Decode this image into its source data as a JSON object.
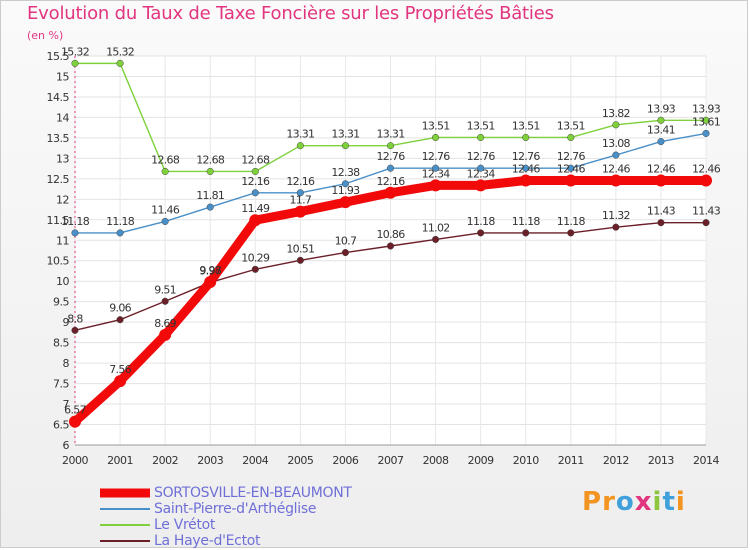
{
  "title": "Evolution du Taux de Taxe Foncière sur les Propriétés Bâties",
  "unit_label": "(en %)",
  "logo": {
    "text": "Proxiti",
    "letters": [
      {
        "ch": "P",
        "color": "#f2941f"
      },
      {
        "ch": "r",
        "color": "#f2941f"
      },
      {
        "ch": "o",
        "color": "#3fa0db"
      },
      {
        "ch": "x",
        "color": "#e2357f"
      },
      {
        "ch": "i",
        "color": "#8dc63f"
      },
      {
        "ch": "t",
        "color": "#3fa0db"
      },
      {
        "ch": "i",
        "color": "#f2941f"
      }
    ]
  },
  "chart_data": {
    "type": "line",
    "title": "Evolution du Taux de Taxe Foncière sur les Propriétés Bâties",
    "ylabel": "(en %)",
    "xlabel": "",
    "ylim": [
      6,
      15.5
    ],
    "yticks": [
      6,
      6.5,
      7,
      7.5,
      8,
      8.5,
      9,
      9.5,
      10,
      10.5,
      11,
      11.5,
      12,
      12.5,
      13,
      13.5,
      14,
      14.5,
      15,
      15.5
    ],
    "ytick_labels": [
      "6",
      "6.5",
      "7",
      "7.5",
      "8",
      "8.5",
      "9",
      "9.5",
      "10",
      "10.5",
      "11",
      "11.5",
      "12",
      "12.5",
      "13",
      "13.5",
      "14",
      "14.5",
      "15",
      "15.5"
    ],
    "categories": [
      "2000",
      "2001",
      "2002",
      "2003",
      "2004",
      "2005",
      "2006",
      "2007",
      "2008",
      "2009",
      "2010",
      "2011",
      "2012",
      "2013",
      "2014"
    ],
    "grid": true,
    "series": [
      {
        "name": "La Haye-d'Ectot",
        "color": "#6b1f28",
        "values": [
          8.8,
          9.06,
          9.51,
          9.97,
          10.29,
          10.51,
          10.7,
          10.86,
          11.02,
          11.18,
          11.18,
          11.18,
          11.32,
          11.43,
          11.43
        ],
        "labels": [
          "8.8",
          "9.06",
          "9.51",
          "9.97",
          "10.29",
          "10.51",
          "10.7",
          "10.86",
          "11.02",
          "11.18",
          "11.18",
          "11.18",
          "11.32",
          "11.43",
          "11.43"
        ]
      },
      {
        "name": "Le Vrétot",
        "color": "#7ed13b",
        "values": [
          15.32,
          15.32,
          12.68,
          12.68,
          12.68,
          13.31,
          13.31,
          13.31,
          13.51,
          13.51,
          13.51,
          13.51,
          13.82,
          13.93,
          13.93
        ],
        "labels": [
          "15.32",
          "15.32",
          "12.68",
          "12.68",
          "12.68",
          "13.31",
          "13.31",
          "13.31",
          "13.51",
          "13.51",
          "13.51",
          "13.51",
          "13.82",
          "13.93",
          "13.93"
        ]
      },
      {
        "name": "Saint-Pierre-d'Arthéglise",
        "color": "#4a90c8",
        "values": [
          11.18,
          11.18,
          11.46,
          11.81,
          12.16,
          12.16,
          12.38,
          12.76,
          12.76,
          12.76,
          12.76,
          12.76,
          13.08,
          13.41,
          13.61
        ],
        "labels": [
          "11.18",
          "11.18",
          "11.46",
          "11.81",
          "12.16",
          "12.16",
          "12.38",
          "12.76",
          "12.76",
          "12.76",
          "12.76",
          "12.76",
          "13.08",
          "13.41",
          "13.61"
        ]
      },
      {
        "name": "SORTOSVILLE-EN-BEAUMONT",
        "color": "#f20a0a",
        "values": [
          6.57,
          7.56,
          8.69,
          9.98,
          11.49,
          11.7,
          11.93,
          12.16,
          12.34,
          12.34,
          12.46,
          12.46,
          12.46,
          12.46,
          12.46
        ],
        "labels": [
          "6.57",
          "7.56",
          "8.69",
          "9.98",
          "11.49",
          "11.7",
          "11.93",
          "12.16",
          "12.34",
          "12.34",
          "12.46",
          "12.46",
          "12.46",
          "12.46",
          "12.46"
        ]
      }
    ],
    "legend": {
      "placement": "bottom-left",
      "entries": [
        {
          "name": "SORTOSVILLE-EN-BEAUMONT",
          "color": "#f20a0a",
          "thick": true
        },
        {
          "name": "Saint-Pierre-d'Arthéglise",
          "color": "#4a90c8",
          "thick": false
        },
        {
          "name": "Le Vrétot",
          "color": "#7ed13b",
          "thick": false
        },
        {
          "name": "La Haye-d'Ectot",
          "color": "#6b1f28",
          "thick": false
        }
      ]
    }
  }
}
